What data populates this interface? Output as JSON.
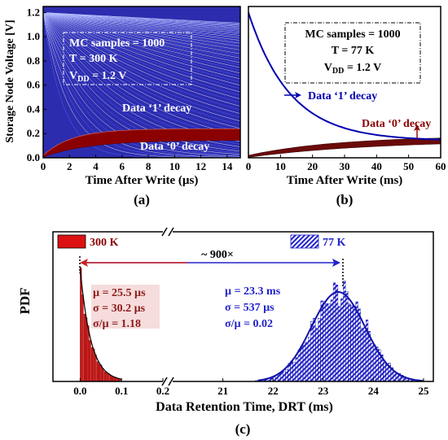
{
  "chart_data": [
    {
      "panel": "(a)",
      "type": "line",
      "xlabel": "Time After Write (µs)",
      "ylabel": "Storage Node Voltage [V]",
      "xlim": [
        0,
        15
      ],
      "ylim": [
        0,
        1.25
      ],
      "xticks": [
        "0",
        "2",
        "4",
        "6",
        "8",
        "10",
        "12",
        "14"
      ],
      "yticks": [
        "0.0",
        "0.2",
        "0.4",
        "0.6",
        "0.8",
        "1.0",
        "1.2"
      ],
      "annotation_lines": [
        "MC samples = 1000",
        "T = 300 K",
        "V",
        "DD",
        " = 1.2 V"
      ],
      "series": [
        {
          "name": "Data ‘1’ decay",
          "color": "#0000b0",
          "start": 1.2,
          "tau_range_us": [
            1.5,
            200
          ],
          "samples_drawn": 70
        },
        {
          "name": "Data ‘0’ decay",
          "color": "#8b0000",
          "start": 0.02,
          "end_range": [
            0.16,
            0.24
          ]
        }
      ]
    },
    {
      "panel": "(b)",
      "type": "line",
      "xlabel": "Time After Write (ms)",
      "xlim": [
        0,
        60
      ],
      "ylim": [
        0,
        1.25
      ],
      "xticks": [
        "0",
        "10",
        "20",
        "30",
        "40",
        "50",
        "60"
      ],
      "annotation_lines": [
        "MC samples = 1000",
        "T = 77 K",
        "V",
        "DD",
        " = 1.2 V"
      ],
      "series": [
        {
          "name": "Data ‘1’ decay",
          "color": "#0000b0",
          "start": 1.2,
          "floor": 0.14,
          "tau_ms": 13
        },
        {
          "name": "Data ‘0’ decay",
          "color": "#8b0000",
          "start": 0.02,
          "end": 0.17
        }
      ]
    },
    {
      "panel": "(c)",
      "type": "bar",
      "xlabel": "Data Retention Time, DRT (ms)",
      "ylabel": "PDF",
      "xticks": [
        "0.0",
        "0.1",
        "0.2",
        "21",
        "22",
        "23",
        "24",
        "25"
      ],
      "ratio_label": "~ 900×",
      "series": [
        {
          "name": "300 K",
          "color": "#dd1111",
          "mu": "µ = 25.5 µs",
          "sigma": "σ = 30.2 µs",
          "ratio": "σ/µ = 1.18",
          "mean_ms": 0.0255
        },
        {
          "name": "77 K",
          "color": "#2222cc",
          "mu": "µ = 23.3 ms",
          "sigma": "σ = 537 µs",
          "ratio": "σ/µ = 0.02",
          "mean_ms": 23.3,
          "sd_ms": 0.537
        }
      ]
    }
  ]
}
